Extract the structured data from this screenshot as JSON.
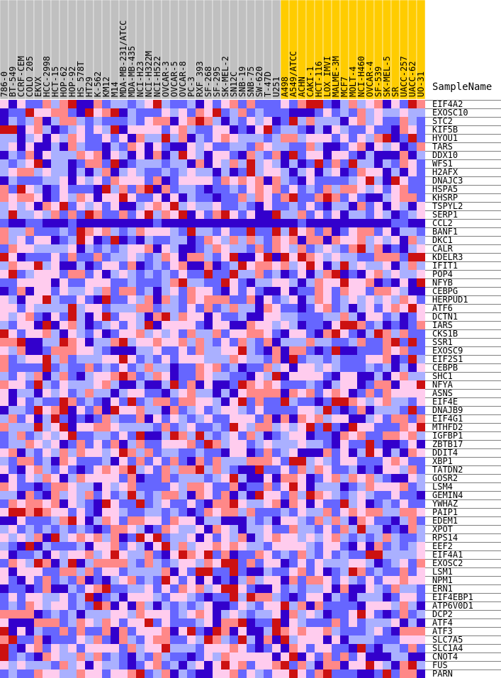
{
  "chart_data": {
    "type": "heatmap",
    "title": "",
    "row_header": "SampleName",
    "columns": [
      "786-0",
      "BT-549",
      "CCRF-CEM",
      "COLO 205",
      "EKVX",
      "HCC-2998",
      "HCT-15",
      "HOP-62",
      "HOP-92",
      "HS 578T",
      "HT29",
      "K-562",
      "KM12",
      "M14",
      "MDA-MB-231/ATCC",
      "MDA-MB-435",
      "NCI-H23",
      "NCI-H322M",
      "NCI-H522",
      "OVCAR-3",
      "OVCAR-5",
      "OVCAR-8",
      "PC-3",
      "RXF 393",
      "SF-268",
      "SF-295",
      "SK-MEL-2",
      "SN12C",
      "SNB-19",
      "SNB-75",
      "SW-620",
      "T-47D",
      "U251",
      "A498",
      "A549/ATCC",
      "ACHN",
      "CAKI-1",
      "HCT-116",
      "LOX IMVI",
      "MALME-3M",
      "MCF7",
      "MOLT-4",
      "NCI-H460",
      "OVCAR-4",
      "SF-539",
      "SK-MEL-5",
      "SR",
      "UACC-257",
      "UACC-62",
      "UO-31"
    ],
    "group_a_count": 33,
    "group_colors": {
      "group_a": "#c0c0c0",
      "group_b": "#ffcc00"
    },
    "rows": [
      "EIF4A2",
      "EXOSC10",
      "STC2",
      "KIF5B",
      "HYOU1",
      "TARS",
      "DDX10",
      "WFS1",
      "H2AFX",
      "DNAJC3",
      "HSPA5",
      "KHSRP",
      "TSPYL2",
      "SERP1",
      "CCL2",
      "BANF1",
      "DKC1",
      "CALR",
      "KDELR3",
      "IFIT1",
      "POP4",
      "NFYB",
      "CEBPG",
      "HERPUD1",
      "ATF6",
      "DCTN1",
      "IARS",
      "CKS1B",
      "SSR1",
      "EXOSC9",
      "EIF2S1",
      "CEBPB",
      "SHC1",
      "NFYA",
      "ASNS",
      "EIF4E",
      "DNAJB9",
      "EIF4G1",
      "MTHFD2",
      "IGFBP1",
      "ZBTB17",
      "DDIT4",
      "XBP1",
      "TATDN2",
      "GOSR2",
      "LSM4",
      "GEMIN4",
      "YWHAZ",
      "PAIP1",
      "EDEM1",
      "XPOT",
      "RPS14",
      "EEF2",
      "EIF4A1",
      "EXOSC2",
      "LSM1",
      "NPM1",
      "ERN1",
      "EIF4EBP1",
      "ATP6V0D1",
      "DCP2",
      "ATF4",
      "ATF3",
      "SLC7A5",
      "SLC1A4",
      "CNOT4",
      "FUS",
      "PARN"
    ],
    "scale": [
      "#3300cc",
      "#6666ff",
      "#aab0ff",
      "#ffccee",
      "#ff8888",
      "#cc1111"
    ],
    "seed": 20417
  }
}
